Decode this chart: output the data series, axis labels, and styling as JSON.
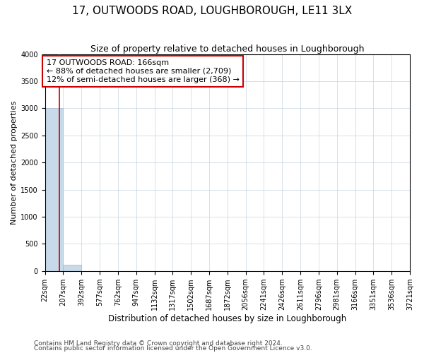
{
  "title": "17, OUTWOODS ROAD, LOUGHBOROUGH, LE11 3LX",
  "subtitle": "Size of property relative to detached houses in Loughborough",
  "xlabel": "Distribution of detached houses by size in Loughborough",
  "ylabel": "Number of detached properties",
  "bin_labels": [
    "22sqm",
    "207sqm",
    "392sqm",
    "577sqm",
    "762sqm",
    "947sqm",
    "1132sqm",
    "1317sqm",
    "1502sqm",
    "1687sqm",
    "1872sqm",
    "2056sqm",
    "2241sqm",
    "2426sqm",
    "2611sqm",
    "2796sqm",
    "2981sqm",
    "3166sqm",
    "3351sqm",
    "3536sqm",
    "3721sqm"
  ],
  "bar_heights": [
    3000,
    120,
    2,
    1,
    0,
    0,
    0,
    0,
    0,
    0,
    0,
    0,
    0,
    0,
    0,
    0,
    0,
    0,
    0,
    0
  ],
  "bar_color": "#c8daea",
  "bar_edge_color": "#a0b8cc",
  "property_line_x": 166,
  "property_line_color": "#cc0000",
  "annotation_line1": "17 OUTWOODS ROAD: 166sqm",
  "annotation_line2": "← 88% of detached houses are smaller (2,709)",
  "annotation_line3": "12% of semi-detached houses are larger (368) →",
  "annotation_box_color": "#ffffff",
  "annotation_box_edge": "#cc0000",
  "ylim": [
    0,
    4000
  ],
  "yticks": [
    0,
    500,
    1000,
    1500,
    2000,
    2500,
    3000,
    3500,
    4000
  ],
  "footnote1": "Contains HM Land Registry data © Crown copyright and database right 2024.",
  "footnote2": "Contains public sector information licensed under the Open Government Licence v3.0.",
  "background_color": "#ffffff",
  "grid_color": "#c8d4de",
  "title_fontsize": 11,
  "subtitle_fontsize": 9,
  "xlabel_fontsize": 8.5,
  "ylabel_fontsize": 8,
  "tick_fontsize": 7,
  "annotation_fontsize": 8,
  "footnote_fontsize": 6.5
}
